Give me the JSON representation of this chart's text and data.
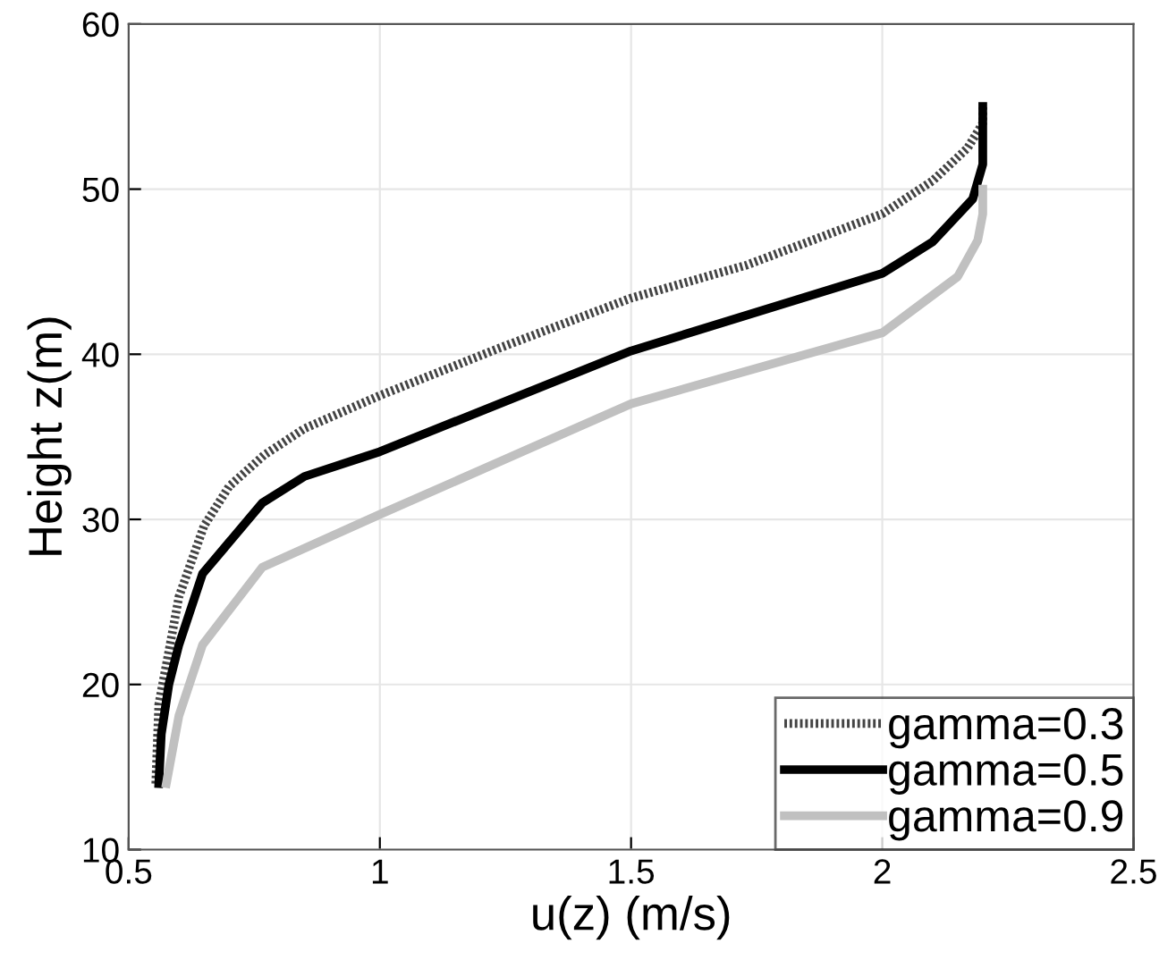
{
  "chart_data": {
    "type": "line",
    "xlabel": "u(z) (m/s)",
    "ylabel": "Height z(m)",
    "xlim": [
      0.5,
      2.5
    ],
    "ylim": [
      10,
      60
    ],
    "xticks": [
      0.5,
      1,
      1.5,
      2,
      2.5
    ],
    "yticks": [
      10,
      20,
      30,
      40,
      50,
      60
    ],
    "grid": true,
    "legend": "bottom right",
    "series": [
      {
        "name": "gamma=0.3",
        "color": "#444444",
        "line_style": "dotted",
        "x": [
          0.554,
          0.56,
          0.58,
          0.6,
          0.65,
          0.7,
          0.77,
          0.85,
          1.0,
          1.24,
          1.5,
          1.73,
          2.0,
          2.1,
          2.17,
          2.2,
          2.2
        ],
        "values": [
          14,
          18.8,
          22,
          25.3,
          29.6,
          32,
          33.9,
          35.5,
          37.5,
          40.4,
          43.4,
          45.4,
          48.5,
          50.5,
          52.5,
          54,
          55
        ]
      },
      {
        "name": "gamma=0.5",
        "color": "#000000",
        "line_style": "solid",
        "x": [
          0.56,
          0.565,
          0.58,
          0.6,
          0.647,
          0.766,
          0.85,
          1.0,
          1.5,
          2.0,
          2.1,
          2.18,
          2.2,
          2.2
        ],
        "values": [
          14,
          17,
          20,
          22.4,
          26.7,
          31,
          32.6,
          34.1,
          40.2,
          44.9,
          46.8,
          49.4,
          51.5,
          55
        ]
      },
      {
        "name": "gamma=0.9",
        "color": "#c0c0c0",
        "line_style": "solid",
        "x": [
          0.575,
          0.6,
          0.647,
          0.766,
          1.0,
          1.5,
          2.0,
          2.15,
          2.19,
          2.2,
          2.2
        ],
        "values": [
          14,
          18.1,
          22.4,
          27.1,
          30.3,
          37.0,
          41.3,
          44.7,
          46.9,
          48.5,
          50
        ]
      }
    ]
  }
}
